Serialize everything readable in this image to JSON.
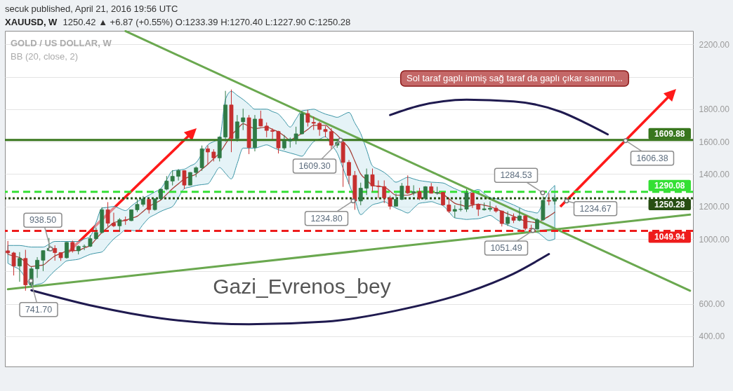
{
  "chart_data": {
    "type": "candlestick",
    "title": "XAUUSD, W",
    "subtitle": "1250.42 ▲ +6.87 (+0.55%) O:1233.39 H:1270.40 L:1227.90 C:1250.28",
    "categories": [
      null,
      null,
      null,
      null,
      null,
      null,
      null,
      null,
      null,
      null,
      null,
      null,
      null,
      null,
      null,
      null,
      null,
      null,
      null,
      null,
      null,
      null,
      null,
      null,
      null,
      null,
      null,
      null,
      null,
      null,
      null,
      null,
      null,
      null,
      null,
      null,
      null,
      null,
      null,
      null,
      null,
      null,
      null,
      null,
      null,
      null,
      null,
      null,
      null,
      null,
      null,
      null,
      null,
      null,
      null,
      null,
      null,
      null,
      null,
      null,
      null,
      null,
      null,
      null,
      null,
      null,
      null,
      null,
      null,
      null,
      null,
      null,
      null,
      null,
      null,
      null,
      null,
      null,
      null,
      null,
      null,
      null,
      null,
      null,
      null,
      null,
      null,
      null,
      null,
      null,
      null,
      null,
      null,
      null,
      null,
      null,
      null,
      null,
      null,
      null,
      null,
      null,
      null,
      null,
      null,
      null,
      null,
      null,
      null,
      null,
      null,
      null,
      null,
      null,
      null,
      null,
      null
    ],
    "ohlc": [
      [
        927,
        988,
        907,
        914
      ],
      [
        914,
        921,
        775,
        833
      ],
      [
        833,
        919,
        736,
        880
      ],
      [
        880,
        933,
        681,
        717
      ],
      [
        717,
        829,
        700,
        816
      ],
      [
        816,
        888,
        760,
        869
      ],
      [
        869,
        930,
        802,
        928
      ],
      [
        928,
        1006,
        925,
        942
      ],
      [
        942,
        961,
        866,
        916
      ],
      [
        916,
        917,
        865,
        884
      ],
      [
        884,
        982,
        879,
        979
      ],
      [
        979,
        990,
        916,
        927
      ],
      [
        927,
        960,
        905,
        954
      ],
      [
        954,
        966,
        931,
        955
      ],
      [
        955,
        1024,
        950,
        1002
      ],
      [
        1002,
        1070,
        996,
        1040
      ],
      [
        1040,
        1195,
        1034,
        1180
      ],
      [
        1180,
        1227,
        1075,
        1097
      ],
      [
        1097,
        1162,
        1073,
        1081
      ],
      [
        1081,
        1129,
        1045,
        1118
      ],
      [
        1118,
        1138,
        1087,
        1113
      ],
      [
        1113,
        1181,
        1110,
        1180
      ],
      [
        1180,
        1249,
        1166,
        1213
      ],
      [
        1213,
        1265,
        1200,
        1244
      ],
      [
        1244,
        1246,
        1157,
        1181
      ],
      [
        1181,
        1248,
        1175,
        1248
      ],
      [
        1248,
        1310,
        1240,
        1307
      ],
      [
        1307,
        1388,
        1300,
        1357
      ],
      [
        1357,
        1424,
        1330,
        1386
      ],
      [
        1386,
        1431,
        1360,
        1421
      ],
      [
        1421,
        1424,
        1308,
        1332
      ],
      [
        1332,
        1412,
        1330,
        1410
      ],
      [
        1410,
        1447,
        1381,
        1439
      ],
      [
        1439,
        1576,
        1420,
        1556
      ],
      [
        1556,
        1577,
        1462,
        1536
      ],
      [
        1536,
        1553,
        1478,
        1500
      ],
      [
        1500,
        1632,
        1478,
        1628
      ],
      [
        1628,
        1913,
        1600,
        1826
      ],
      [
        1826,
        1921,
        1535,
        1620
      ],
      [
        1620,
        1764,
        1600,
        1722
      ],
      [
        1722,
        1803,
        1671,
        1747
      ],
      [
        1747,
        1764,
        1523,
        1564
      ],
      [
        1564,
        1764,
        1540,
        1739
      ],
      [
        1739,
        1791,
        1694,
        1696
      ],
      [
        1696,
        1718,
        1627,
        1669
      ],
      [
        1669,
        1681,
        1613,
        1663
      ],
      [
        1663,
        1667,
        1527,
        1561
      ],
      [
        1561,
        1641,
        1549,
        1604
      ],
      [
        1604,
        1625,
        1563,
        1614
      ],
      [
        1614,
        1692,
        1583,
        1648
      ],
      [
        1648,
        1787,
        1645,
        1773
      ],
      [
        1773,
        1796,
        1693,
        1719
      ],
      [
        1719,
        1754,
        1672,
        1713
      ],
      [
        1713,
        1723,
        1636,
        1675
      ],
      [
        1675,
        1695,
        1626,
        1662
      ],
      [
        1662,
        1683,
        1555,
        1578
      ],
      [
        1578,
        1617,
        1562,
        1595
      ],
      [
        1595,
        1605,
        1321,
        1472
      ],
      [
        1472,
        1487,
        1338,
        1392
      ],
      [
        1392,
        1419,
        1180,
        1234
      ],
      [
        1234,
        1347,
        1208,
        1313
      ],
      [
        1313,
        1434,
        1271,
        1396
      ],
      [
        1396,
        1434,
        1292,
        1327
      ],
      [
        1327,
        1361,
        1251,
        1323
      ],
      [
        1323,
        1361,
        1221,
        1253
      ],
      [
        1253,
        1267,
        1182,
        1202
      ],
      [
        1202,
        1280,
        1202,
        1244
      ],
      [
        1244,
        1345,
        1240,
        1326
      ],
      [
        1326,
        1392,
        1277,
        1284
      ],
      [
        1284,
        1331,
        1268,
        1292
      ],
      [
        1292,
        1315,
        1240,
        1250
      ],
      [
        1250,
        1326,
        1240,
        1322
      ],
      [
        1322,
        1345,
        1280,
        1282
      ],
      [
        1282,
        1322,
        1273,
        1287
      ],
      [
        1287,
        1290,
        1205,
        1210
      ],
      [
        1210,
        1255,
        1160,
        1171
      ],
      [
        1171,
        1208,
        1131,
        1182
      ],
      [
        1182,
        1238,
        1170,
        1184
      ],
      [
        1184,
        1307,
        1167,
        1283
      ],
      [
        1283,
        1287,
        1191,
        1213
      ],
      [
        1213,
        1219,
        1142,
        1183
      ],
      [
        1180,
        1224,
        1175,
        1186
      ],
      [
        1183,
        1232,
        1170,
        1190
      ],
      [
        1190,
        1205,
        1162,
        1172
      ],
      [
        1172,
        1175,
        1077,
        1095
      ],
      [
        1095,
        1170,
        1080,
        1134
      ],
      [
        1134,
        1157,
        1098,
        1115
      ],
      [
        1115,
        1191,
        1108,
        1142
      ],
      [
        1142,
        1146,
        1052,
        1065
      ],
      [
        1065,
        1088,
        1046,
        1061
      ],
      [
        1061,
        1127,
        1058,
        1118
      ],
      [
        1118,
        1263,
        1111,
        1238
      ],
      [
        1238,
        1282,
        1208,
        1233
      ],
      [
        1233,
        1270,
        1212,
        1250
      ],
      null,
      null,
      null,
      null,
      null,
      null,
      null,
      null,
      null,
      null,
      null,
      null,
      null,
      null,
      null,
      null,
      null,
      null,
      null,
      null,
      null,
      null,
      null
    ],
    "colors": [
      "#c62f2f",
      "#c62f2f",
      "#2f7a45",
      "#c62f2f",
      "#2f7a45",
      "#2f7a45",
      "#2f7a45",
      "#2f7a45",
      "#c62f2f",
      "#c62f2f",
      "#2f7a45",
      "#c62f2f",
      "#2f7a45",
      "#2f7a45",
      "#2f7a45",
      "#2f7a45",
      "#2f7a45",
      "#c62f2f",
      "#c62f2f",
      "#2f7a45",
      "#c62f2f",
      "#2f7a45",
      "#2f7a45",
      "#2f7a45",
      "#c62f2f",
      "#2f7a45",
      "#2f7a45",
      "#2f7a45",
      "#2f7a45",
      "#2f7a45",
      "#c62f2f",
      "#2f7a45",
      "#2f7a45",
      "#2f7a45",
      "#c62f2f",
      "#c62f2f",
      "#2f7a45",
      "#2f7a45",
      "#c62f2f",
      "#2f7a45",
      "#2f7a45",
      "#c62f2f",
      "#2f7a45",
      "#c62f2f",
      "#c62f2f",
      "#c62f2f",
      "#c62f2f",
      "#2f7a45",
      "#2f7a45",
      "#2f7a45",
      "#2f7a45",
      "#c62f2f",
      "#c62f2f",
      "#c62f2f",
      "#c62f2f",
      "#c62f2f",
      "#2f7a45",
      "#c62f2f",
      "#c62f2f",
      "#c62f2f",
      "#2f7a45",
      "#2f7a45",
      "#c62f2f",
      "#c62f2f",
      "#c62f2f",
      "#c62f2f",
      "#2f7a45",
      "#2f7a45",
      "#c62f2f",
      "#2f7a45",
      "#c62f2f",
      "#2f7a45",
      "#c62f2f",
      "#2f7a45",
      "#c62f2f",
      "#c62f2f",
      "#2f7a45",
      "#2f7a45",
      "#2f7a45",
      "#c62f2f",
      "#c62f2f",
      "#2f7a45",
      "#2f7a45",
      "#c62f2f",
      "#c62f2f",
      "#2f7a45",
      "#c62f2f",
      "#2f7a45",
      "#c62f2f",
      "#c62f2f",
      "#2f7a45",
      "#2f7a45",
      "#c62f2f",
      "#2f7a45",
      null,
      null,
      null,
      null,
      null,
      null,
      null,
      null,
      null,
      null,
      null,
      null,
      null,
      null,
      null,
      null,
      null,
      null,
      null,
      null,
      null,
      null,
      null
    ],
    "ylim": [
      214,
      2283
    ],
    "yticks": [
      {
        "value": 400,
        "label": "400.00"
      },
      {
        "value": 600,
        "label": "600.00"
      },
      {
        "value": 800,
        "label": null
      },
      {
        "value": 1000,
        "label": "1000.00"
      },
      {
        "value": 1200,
        "label": "1200.00"
      },
      {
        "value": 1400,
        "label": "1400.00"
      },
      {
        "value": 1600,
        "label": "1600.00"
      },
      {
        "value": 1800,
        "label": "1800.00"
      },
      {
        "value": 2000,
        "label": null
      },
      {
        "value": 2200,
        "label": "2200.00"
      }
    ],
    "grid": "y",
    "tick_labels": "y",
    "series": [
      {
        "type": "line",
        "color": "#a33a32",
        "values": [
          905,
          895,
          885,
          858,
          830,
          835,
          840,
          868,
          895,
          910,
          925,
          928,
          930,
          945,
          960,
          1000,
          1040,
          1070,
          1100,
          1108,
          1115,
          1128,
          1140,
          1170,
          1200,
          1220,
          1240,
          1275,
          1310,
          1340,
          1370,
          1385,
          1400,
          1430,
          1460,
          1495,
          1530,
          1585,
          1640,
          1675,
          1710,
          1695,
          1680,
          1685,
          1690,
          1675,
          1660,
          1635,
          1610,
          1630,
          1650,
          1675,
          1700,
          1700,
          1700,
          1670,
          1640,
          1600,
          1560,
          1480,
          1400,
          1365,
          1330,
          1325,
          1320,
          1295,
          1270,
          1270,
          1270,
          1280,
          1290,
          1290,
          1290,
          1283,
          1275,
          1248,
          1220,
          1210,
          1200,
          1208,
          1215,
          1208,
          1200,
          1185,
          1170,
          1155,
          1140,
          1125,
          1110,
          1105,
          1100,
          1120,
          1140,
          1165,
          null,
          null,
          null,
          null,
          null,
          null,
          null,
          null,
          null,
          null,
          null,
          null,
          null,
          null,
          null,
          null,
          null,
          null,
          null,
          null,
          null,
          null,
          null
        ],
        "lower": [
          850,
          830,
          810,
          760,
          710,
          720,
          730,
          768,
          805,
          835,
          865,
          870,
          875,
          890,
          905,
          913,
          920,
          960,
          1000,
          1028,
          1055,
          1053,
          1050,
          1090,
          1130,
          1150,
          1170,
          1185,
          1200,
          1255,
          1310,
          1320,
          1330,
          1335,
          1340,
          1390,
          1440,
          1405,
          1370,
          1465,
          1560,
          1560,
          1560,
          1570,
          1580,
          1565,
          1550,
          1540,
          1530,
          1520,
          1510,
          1555,
          1600,
          1615,
          1630,
          1580,
          1530,
          1435,
          1340,
          1245,
          1150,
          1180,
          1210,
          1220,
          1230,
          1210,
          1190,
          1175,
          1160,
          1190,
          1220,
          1225,
          1230,
          1218,
          1205,
          1168,
          1130,
          1125,
          1120,
          1123,
          1125,
          1135,
          1145,
          1123,
          1100,
          1085,
          1070,
          1058,
          1045,
          1043,
          1040,
          1015,
          990,
          1000,
          null,
          null,
          null,
          null,
          null,
          null,
          null,
          null,
          null,
          null,
          null,
          null,
          null,
          null,
          null,
          null,
          null,
          null,
          null,
          null,
          null,
          null,
          null
        ],
        "upper": [
          960,
          960,
          960,
          955,
          950,
          950,
          950,
          968,
          985,
          985,
          985,
          985,
          985,
          1000,
          1015,
          1103,
          1190,
          1195,
          1200,
          1188,
          1175,
          1203,
          1230,
          1250,
          1270,
          1290,
          1310,
          1365,
          1420,
          1425,
          1430,
          1450,
          1470,
          1525,
          1580,
          1600,
          1620,
          1860,
          1910,
          1885,
          1860,
          1830,
          1800,
          1800,
          1800,
          1785,
          1770,
          1730,
          1690,
          1740,
          1790,
          1795,
          1800,
          1785,
          1770,
          1760,
          1750,
          1765,
          1780,
          1715,
          1650,
          1550,
          1450,
          1430,
          1410,
          1380,
          1350,
          1365,
          1380,
          1370,
          1360,
          1355,
          1350,
          1348,
          1345,
          1328,
          1310,
          1295,
          1280,
          1293,
          1305,
          1280,
          1255,
          1248,
          1240,
          1225,
          1210,
          1193,
          1175,
          1168,
          1160,
          1225,
          1290,
          1330,
          null,
          null,
          null,
          null,
          null,
          null,
          null,
          null,
          null,
          null,
          null,
          null,
          null,
          null,
          null,
          null,
          null,
          null,
          null,
          null,
          null,
          null,
          null
        ]
      },
      {
        "type": "line",
        "color": "#6aa84f",
        "values": [
          null,
          null,
          null,
          null,
          null,
          null,
          null,
          null,
          null,
          null,
          null,
          null,
          null,
          null,
          null,
          null,
          null,
          null,
          null,
          null,
          2281,
          null,
          null,
          null,
          null,
          null,
          null,
          null,
          null,
          null,
          null,
          null,
          null,
          null,
          null,
          null,
          null,
          null,
          null,
          null,
          null,
          null,
          null,
          null,
          null,
          null,
          null,
          null,
          null,
          null,
          null,
          null,
          null,
          null,
          null,
          null,
          null,
          null,
          null,
          null,
          null,
          null,
          null,
          null,
          null,
          null,
          null,
          null,
          null,
          null,
          null,
          null,
          null,
          null,
          null,
          null,
          null,
          null,
          null,
          null,
          null,
          null,
          null,
          null,
          null,
          null,
          null,
          null,
          null,
          null,
          null,
          null,
          null,
          null,
          null,
          null,
          null,
          null,
          null,
          null,
          null,
          null,
          null,
          null,
          null,
          null,
          null,
          null,
          null,
          null,
          null,
          null,
          null,
          null,
          null,
          null,
          681
        ]
      },
      {
        "type": "line",
        "color": "#6aa84f",
        "values": [
          690,
          null,
          null,
          null,
          null,
          null,
          null,
          null,
          null,
          null,
          null,
          null,
          null,
          null,
          null,
          null,
          null,
          null,
          null,
          null,
          null,
          null,
          null,
          null,
          null,
          null,
          null,
          null,
          null,
          null,
          null,
          null,
          null,
          null,
          null,
          null,
          null,
          null,
          null,
          null,
          null,
          null,
          null,
          null,
          null,
          null,
          null,
          null,
          null,
          null,
          null,
          null,
          null,
          null,
          null,
          null,
          null,
          null,
          null,
          null,
          null,
          null,
          null,
          null,
          null,
          null,
          null,
          null,
          null,
          null,
          null,
          null,
          null,
          null,
          null,
          null,
          null,
          null,
          null,
          null,
          null,
          null,
          null,
          null,
          null,
          null,
          null,
          null,
          null,
          null,
          null,
          null,
          null,
          null,
          null,
          null,
          null,
          null,
          null,
          null,
          null,
          null,
          null,
          null,
          null,
          null,
          null,
          null,
          null,
          null,
          null,
          null,
          null,
          null,
          null,
          null,
          1150
        ]
      },
      {
        "type": "line",
        "color": "#1f1a4f",
        "values": [
          null,
          null,
          null,
          null,
          684,
          null,
          null,
          null,
          null,
          null,
          null,
          null,
          null,
          null,
          null,
          583,
          null,
          null,
          null,
          null,
          null,
          null,
          null,
          null,
          null,
          null,
          511,
          null,
          null,
          null,
          null,
          null,
          null,
          null,
          null,
          null,
          null,
          null,
          null,
          null,
          null,
          474,
          null,
          null,
          null,
          null,
          null,
          null,
          null,
          null,
          null,
          null,
          null,
          null,
          490,
          null,
          null,
          null,
          null,
          null,
          null,
          null,
          null,
          null,
          null,
          null,
          558,
          null,
          null,
          null,
          null,
          null,
          null,
          null,
          null,
          null,
          null,
          null,
          670,
          null,
          null,
          null,
          null,
          null,
          null,
          null,
          786,
          null,
          null,
          null,
          null,
          null,
          907,
          null,
          null,
          null,
          null,
          null,
          null,
          null,
          null,
          null,
          null,
          null,
          null,
          null,
          null,
          null,
          null,
          null,
          null,
          null,
          null,
          null,
          null,
          null,
          null
        ]
      },
      {
        "type": "line",
        "color": "#1f1a4f",
        "values": [
          null,
          null,
          null,
          null,
          null,
          null,
          null,
          null,
          null,
          null,
          null,
          null,
          null,
          null,
          null,
          null,
          null,
          null,
          null,
          null,
          null,
          null,
          null,
          null,
          null,
          null,
          null,
          null,
          null,
          null,
          null,
          null,
          null,
          null,
          null,
          null,
          null,
          null,
          null,
          null,
          null,
          null,
          null,
          null,
          null,
          null,
          null,
          null,
          null,
          null,
          null,
          null,
          null,
          null,
          null,
          null,
          null,
          null,
          null,
          null,
          null,
          null,
          null,
          null,
          null,
          1764,
          null,
          null,
          null,
          null,
          1822,
          null,
          null,
          null,
          null,
          null,
          null,
          null,
          1859,
          null,
          null,
          null,
          null,
          null,
          null,
          null,
          1848,
          null,
          null,
          null,
          null,
          null,
          null,
          null,
          1784,
          null,
          null,
          null,
          1719,
          null,
          null,
          null,
          1645,
          null,
          null,
          null,
          null,
          null,
          null,
          null,
          null,
          null,
          null,
          null,
          null,
          null,
          null
        ]
      }
    ],
    "ref_lines": [
      {
        "axis": "y",
        "value": 1609.88,
        "label": "1609.88",
        "color": "#38761d",
        "line_style": "solid"
      },
      {
        "axis": "y",
        "value": 1290.08,
        "label": "1290.08",
        "color": "#34e034",
        "line_style": "dashed"
      },
      {
        "axis": "y",
        "value": 1250.28,
        "label": "1250.28",
        "color": "#274e13",
        "line_style": "dotted"
      },
      {
        "axis": "y",
        "value": 1049.94,
        "label": "1049.94",
        "color": "#ee1c1c",
        "line_style": "dashed"
      }
    ],
    "annotations": [
      "secuk published, April 21, 2016 19:56 UTC",
      "GOLD / US DOLLAR, W",
      "BB (20, close, 2)",
      "Sol taraf gaplı inmiş sağ taraf da gaplı çıkar sanırım...",
      "Gazi_Evrenos_bey",
      {
        "text": "741.70",
        "y": 741.7
      },
      {
        "text": "938.50",
        "y": 938.5
      },
      {
        "text": "1609.30",
        "y": 1609.3
      },
      {
        "text": "1234.80",
        "y": 1234.8
      },
      {
        "text": "1051.49",
        "y": 1051.49
      },
      {
        "text": "1284.53",
        "y": 1284.53
      },
      {
        "text": "1234.67",
        "y": 1234.67
      },
      {
        "text": "1606.38",
        "y": 1606.38
      }
    ]
  }
}
